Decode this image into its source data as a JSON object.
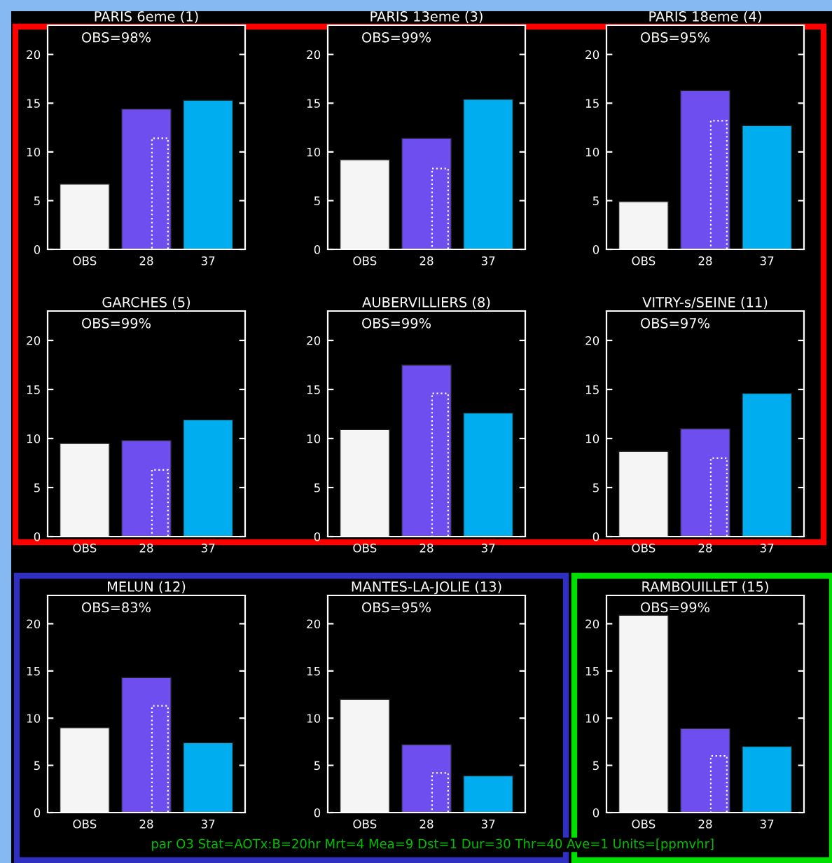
{
  "chart_data": [
    {
      "type": "bar",
      "title": "PARIS 6eme (1)",
      "categories": [
        "OBS",
        "28",
        "37"
      ],
      "ylim": [
        0,
        23
      ],
      "yticks": [
        0,
        5,
        10,
        15,
        20
      ],
      "annotations": [
        "OBS=98%"
      ],
      "series": [
        {
          "type": "bar",
          "colors": [
            "#f5f5f5",
            "#6f4ef0",
            "#00adef"
          ],
          "values": [
            6.7,
            14.4,
            15.3
          ]
        },
        {
          "type": "bar",
          "color": "#ffffff",
          "line_style": "dotted",
          "values": [
            null,
            11.4,
            null
          ]
        }
      ]
    },
    {
      "type": "bar",
      "title": "PARIS 13eme (3)",
      "categories": [
        "OBS",
        "28",
        "37"
      ],
      "ylim": [
        0,
        23
      ],
      "yticks": [
        0,
        5,
        10,
        15,
        20
      ],
      "annotations": [
        "OBS=99%"
      ],
      "series": [
        {
          "type": "bar",
          "colors": [
            "#f5f5f5",
            "#6f4ef0",
            "#00adef"
          ],
          "values": [
            9.2,
            11.4,
            15.4
          ]
        },
        {
          "type": "bar",
          "color": "#ffffff",
          "line_style": "dotted",
          "values": [
            null,
            8.3,
            null
          ]
        }
      ]
    },
    {
      "type": "bar",
      "title": "PARIS 18eme (4)",
      "categories": [
        "OBS",
        "28",
        "37"
      ],
      "ylim": [
        0,
        23
      ],
      "yticks": [
        0,
        5,
        10,
        15,
        20
      ],
      "annotations": [
        "OBS=95%"
      ],
      "series": [
        {
          "type": "bar",
          "colors": [
            "#f5f5f5",
            "#6f4ef0",
            "#00adef"
          ],
          "values": [
            4.9,
            16.3,
            12.7
          ]
        },
        {
          "type": "bar",
          "color": "#ffffff",
          "line_style": "dotted",
          "values": [
            null,
            13.2,
            null
          ]
        }
      ]
    },
    {
      "type": "bar",
      "title": "GARCHES (5)",
      "categories": [
        "OBS",
        "28",
        "37"
      ],
      "ylim": [
        0,
        23
      ],
      "yticks": [
        0,
        5,
        10,
        15,
        20
      ],
      "annotations": [
        "OBS=99%"
      ],
      "series": [
        {
          "type": "bar",
          "colors": [
            "#f5f5f5",
            "#6f4ef0",
            "#00adef"
          ],
          "values": [
            9.5,
            9.8,
            11.9
          ]
        },
        {
          "type": "bar",
          "color": "#ffffff",
          "line_style": "dotted",
          "values": [
            null,
            6.8,
            null
          ]
        }
      ]
    },
    {
      "type": "bar",
      "title": "AUBERVILLIERS (8)",
      "categories": [
        "OBS",
        "28",
        "37"
      ],
      "ylim": [
        0,
        23
      ],
      "yticks": [
        0,
        5,
        10,
        15,
        20
      ],
      "annotations": [
        "OBS=99%"
      ],
      "series": [
        {
          "type": "bar",
          "colors": [
            "#f5f5f5",
            "#6f4ef0",
            "#00adef"
          ],
          "values": [
            10.9,
            17.5,
            12.6
          ]
        },
        {
          "type": "bar",
          "color": "#ffffff",
          "line_style": "dotted",
          "values": [
            null,
            14.6,
            null
          ]
        }
      ]
    },
    {
      "type": "bar",
      "title": "VITRY-s/SEINE (11)",
      "categories": [
        "OBS",
        "28",
        "37"
      ],
      "ylim": [
        0,
        23
      ],
      "yticks": [
        0,
        5,
        10,
        15,
        20
      ],
      "annotations": [
        "OBS=97%"
      ],
      "series": [
        {
          "type": "bar",
          "colors": [
            "#f5f5f5",
            "#6f4ef0",
            "#00adef"
          ],
          "values": [
            8.7,
            11.0,
            14.6
          ]
        },
        {
          "type": "bar",
          "color": "#ffffff",
          "line_style": "dotted",
          "values": [
            null,
            8.0,
            null
          ]
        }
      ]
    },
    {
      "type": "bar",
      "title": "MELUN (12)",
      "categories": [
        "OBS",
        "28",
        "37"
      ],
      "ylim": [
        0,
        23
      ],
      "yticks": [
        0,
        5,
        10,
        15,
        20
      ],
      "annotations": [
        "OBS=83%"
      ],
      "series": [
        {
          "type": "bar",
          "colors": [
            "#f5f5f5",
            "#6f4ef0",
            "#00adef"
          ],
          "values": [
            9.0,
            14.3,
            7.4
          ]
        },
        {
          "type": "bar",
          "color": "#ffffff",
          "line_style": "dotted",
          "values": [
            null,
            11.3,
            null
          ]
        }
      ]
    },
    {
      "type": "bar",
      "title": "MANTES-LA-JOLIE (13)",
      "categories": [
        "OBS",
        "28",
        "37"
      ],
      "ylim": [
        0,
        23
      ],
      "yticks": [
        0,
        5,
        10,
        15,
        20
      ],
      "annotations": [
        "OBS=95%"
      ],
      "series": [
        {
          "type": "bar",
          "colors": [
            "#f5f5f5",
            "#6f4ef0",
            "#00adef"
          ],
          "values": [
            12.0,
            7.2,
            3.9
          ]
        },
        {
          "type": "bar",
          "color": "#ffffff",
          "line_style": "dotted",
          "values": [
            null,
            4.2,
            null
          ]
        }
      ]
    },
    {
      "type": "bar",
      "title": "RAMBOUILLET (15)",
      "categories": [
        "OBS",
        "28",
        "37"
      ],
      "ylim": [
        0,
        23
      ],
      "yticks": [
        0,
        5,
        10,
        15,
        20
      ],
      "annotations": [
        "OBS=99%",
        "par O3 Stat=AOTx:B=20hr Mrt=4 Mea=9 Dst=1 Dur=30 Thr=40 Ave=1 Units=[ppmvhr]"
      ],
      "series": [
        {
          "type": "bar",
          "colors": [
            "#f5f5f5",
            "#6f4ef0",
            "#00adef"
          ],
          "values": [
            20.9,
            8.9,
            7.0
          ]
        },
        {
          "type": "bar",
          "color": "#ffffff",
          "line_style": "dotted",
          "values": [
            null,
            6.0,
            null
          ]
        }
      ]
    }
  ]
}
